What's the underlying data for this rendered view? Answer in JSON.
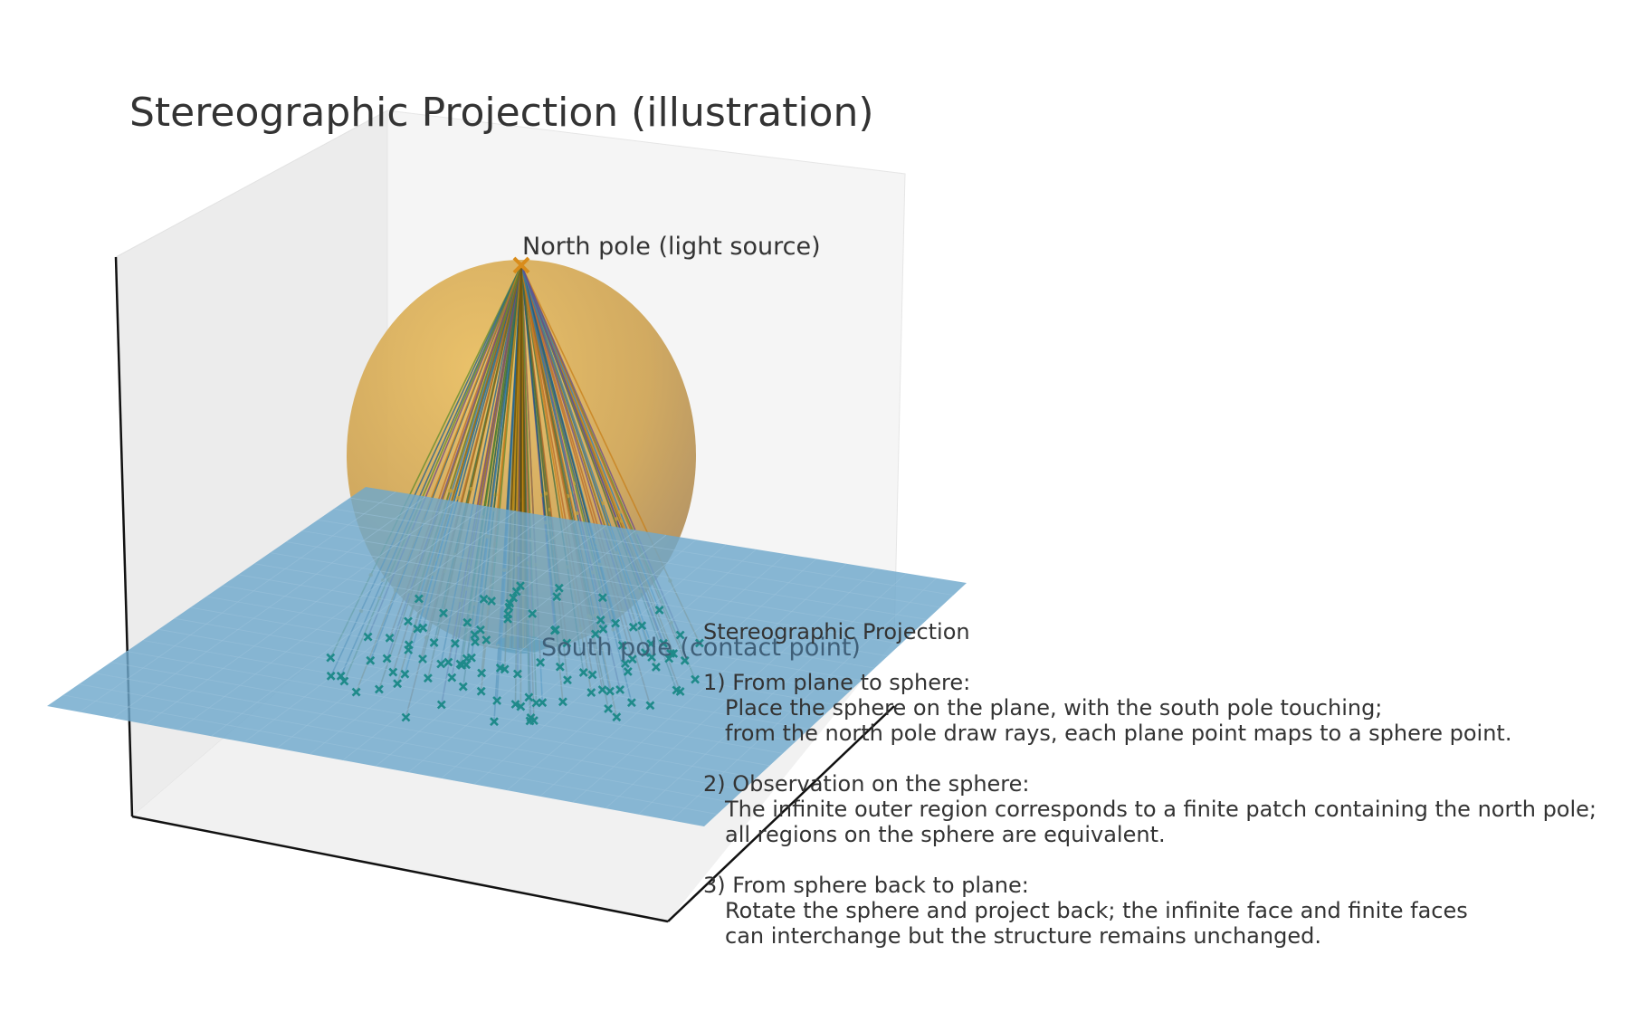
{
  "title": "Stereographic Projection (illustration)",
  "labels": {
    "north_pole": "North pole (light source)",
    "south_pole": "South pole (contact point)"
  },
  "info_panel": {
    "heading": "Stereographic Projection",
    "sections": [
      {
        "title": "1) From plane to sphere:",
        "lines": [
          "Place the sphere on the plane, with the south pole touching;",
          "from the north pole draw rays, each plane point maps to a sphere point."
        ]
      },
      {
        "title": "2) Observation on the sphere:",
        "lines": [
          "The infinite outer region corresponds to a finite patch containing the north pole;",
          "all regions on the sphere are equivalent."
        ]
      },
      {
        "title": "3) From sphere back to plane:",
        "lines": [
          "Rotate the sphere and project back; the infinite face and finite faces",
          "can interchange but the structure remains unchanged."
        ]
      }
    ]
  },
  "colors": {
    "sphere": "#d9a441",
    "plane": "#6fa8cc",
    "plane_points": "#1f8a8a",
    "north_marker": "#d98c1a",
    "ray_palette": [
      "#1f5f8b",
      "#c77f1a",
      "#3d6b3d",
      "#8a6a1a",
      "#2a7fb8",
      "#6a4a8a",
      "#b86a2a",
      "#5f8a2a"
    ]
  }
}
